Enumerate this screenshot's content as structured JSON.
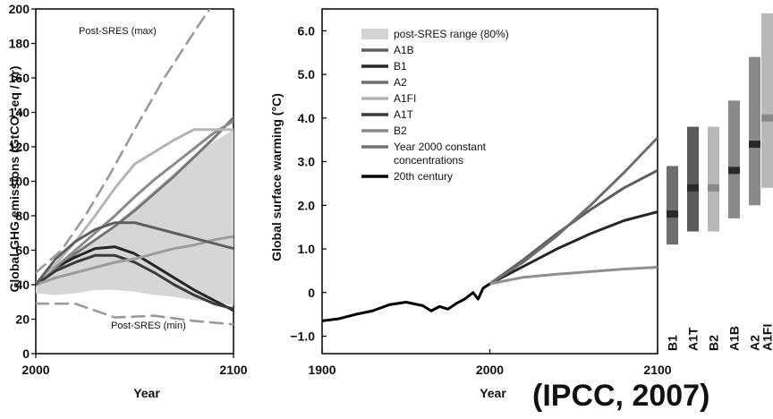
{
  "credit": "(IPCC, 2007)",
  "chart_data": [
    {
      "type": "line",
      "panel": "emissions",
      "xlabel": "Year",
      "ylabel": "Global GHG emissions (GtCO2-eq / yr)",
      "xlim": [
        2000,
        2100
      ],
      "ylim": [
        0,
        200
      ],
      "xticks": [
        2000,
        2100
      ],
      "yticks": [
        0,
        20,
        40,
        60,
        80,
        100,
        120,
        140,
        160,
        180,
        200
      ],
      "band": {
        "x": [
          2000,
          2010,
          2020,
          2030,
          2040,
          2050,
          2060,
          2070,
          2080,
          2090,
          2100
        ],
        "lower": [
          35,
          34,
          35,
          37,
          37,
          36,
          34,
          33,
          31,
          30,
          28
        ],
        "upper": [
          42,
          50,
          58,
          66,
          75,
          85,
          95,
          105,
          115,
          123,
          130
        ]
      },
      "annotations": [
        {
          "text": "Post-SRES (max)",
          "x": 2005,
          "y": 192
        },
        {
          "text": "Post-SRES (min)",
          "x": 2027,
          "y": 14
        }
      ],
      "series": [
        {
          "x": [
            2000,
            2013,
            2025,
            2037,
            2050,
            2065,
            2082,
            2100
          ],
          "y": [
            47,
            60,
            80,
            103,
            130,
            160,
            190,
            220
          ],
          "color": "#9a9a9a",
          "dash": true
        },
        {
          "x": [
            2000,
            2020,
            2040,
            2060,
            2080,
            2100
          ],
          "y": [
            29,
            29,
            21,
            22,
            19,
            17
          ],
          "color": "#9a9a9a",
          "dash": true
        },
        {
          "x": [
            2000,
            2010,
            2020,
            2030,
            2040,
            2050,
            2060,
            2070,
            2080,
            2090,
            2100
          ],
          "y": [
            40,
            48,
            58,
            66,
            74,
            83,
            93,
            103,
            114,
            125,
            137
          ],
          "color": "#757575"
        },
        {
          "x": [
            2000,
            2010,
            2020,
            2030,
            2040,
            2050,
            2060,
            2070,
            2080,
            2090,
            2100
          ],
          "y": [
            40,
            50,
            56,
            61,
            62,
            58,
            51,
            44,
            37,
            31,
            25
          ],
          "color": "#262626"
        },
        {
          "x": [
            2000,
            2010,
            2020,
            2030,
            2040,
            2050,
            2060,
            2070,
            2080,
            2090,
            2100
          ],
          "y": [
            40,
            50,
            60,
            70,
            80,
            91,
            101,
            110,
            119,
            128,
            135
          ],
          "color": "#8a8a8a"
        },
        {
          "x": [
            2000,
            2010,
            2020,
            2030,
            2040,
            2050,
            2060,
            2070,
            2080,
            2090,
            2100
          ],
          "y": [
            40,
            52,
            65,
            80,
            96,
            110,
            117,
            124,
            130,
            130,
            130
          ],
          "color": "#b5b5b5"
        },
        {
          "x": [
            2000,
            2010,
            2020,
            2030,
            2040,
            2050,
            2060,
            2070,
            2080,
            2090,
            2100
          ],
          "y": [
            40,
            48,
            53,
            57,
            57,
            53,
            47,
            40,
            34,
            29,
            26
          ],
          "color": "#3a3a3a"
        },
        {
          "x": [
            2000,
            2010,
            2020,
            2030,
            2040,
            2050,
            2060,
            2070,
            2080,
            2090,
            2100
          ],
          "y": [
            40,
            44,
            47,
            50,
            53,
            55,
            58,
            61,
            63,
            66,
            68
          ],
          "color": "#9c9c9c"
        },
        {
          "x": [
            2000,
            2010,
            2020,
            2030,
            2040,
            2050,
            2060,
            2070,
            2080,
            2090,
            2100
          ],
          "y": [
            40,
            55,
            65,
            72,
            76,
            76,
            73,
            70,
            67,
            64,
            61
          ],
          "color": "#5e5e5e"
        }
      ]
    },
    {
      "type": "line",
      "panel": "warming",
      "xlabel": "Year",
      "ylabel": "Global surface warming (°C)",
      "xlim": [
        1900,
        2100
      ],
      "ylim": [
        -1.4,
        6.5
      ],
      "xticks": [
        1900,
        2000,
        2100
      ],
      "yticks": [
        -1.0,
        0,
        1.0,
        2.0,
        3.0,
        4.0,
        5.0,
        6.0
      ],
      "ytick_labels": [
        "−1.0",
        "0",
        "1.0",
        "2.0",
        "3.0",
        "4.0",
        "5.0",
        "6.0"
      ],
      "legend": [
        {
          "label": "post-SRES range (80%)",
          "color": "#d4d4d4",
          "patch": true
        },
        {
          "label": "A1B",
          "color": "#5e5e5e"
        },
        {
          "label": "B1",
          "color": "#262626"
        },
        {
          "label": "A2",
          "color": "#6e6e6e"
        },
        {
          "label": "A1FI",
          "color": "#b0b0b0"
        },
        {
          "label": "A1T",
          "color": "#3a3a3a"
        },
        {
          "label": "B2",
          "color": "#8a8a8a"
        },
        {
          "label": "Year 2000 constant\nconcentrations",
          "color": "#707070"
        },
        {
          "label": "20th century",
          "color": "#000000"
        }
      ],
      "series": [
        {
          "name": "A1B",
          "x": [
            2000,
            2020,
            2040,
            2060,
            2080,
            2100
          ],
          "y": [
            0.2,
            0.75,
            1.35,
            1.9,
            2.4,
            2.8
          ],
          "color": "#5e5e5e"
        },
        {
          "name": "B1",
          "x": [
            2000,
            2020,
            2040,
            2060,
            2080,
            2100
          ],
          "y": [
            0.2,
            0.6,
            1.0,
            1.35,
            1.65,
            1.85
          ],
          "color": "#262626"
        },
        {
          "name": "A2",
          "x": [
            2000,
            2020,
            2040,
            2060,
            2080,
            2100
          ],
          "y": [
            0.2,
            0.7,
            1.3,
            2.0,
            2.75,
            3.55
          ],
          "color": "#6e6e6e"
        },
        {
          "name": "Year 2000 constant\nconcentrations",
          "x": [
            2000,
            2020,
            2040,
            2060,
            2080,
            2100
          ],
          "y": [
            0.2,
            0.35,
            0.42,
            0.48,
            0.54,
            0.58
          ],
          "color": "#8f8f8f"
        },
        {
          "name": "20th century",
          "x": [
            1900,
            1910,
            1920,
            1930,
            1940,
            1950,
            1960,
            1965,
            1970,
            1975,
            1980,
            1985,
            1990,
            1993,
            1996,
            2000
          ],
          "y": [
            -0.65,
            -0.6,
            -0.5,
            -0.42,
            -0.28,
            -0.22,
            -0.3,
            -0.42,
            -0.32,
            -0.38,
            -0.25,
            -0.15,
            0.0,
            -0.15,
            0.1,
            0.2
          ],
          "color": "#000000"
        }
      ]
    },
    {
      "type": "bar",
      "panel": "likely-range-2100",
      "categories": [
        "B1",
        "A1T",
        "B2",
        "A1B",
        "A2",
        "A1FI"
      ],
      "ylim": [
        -1.4,
        6.5
      ],
      "ranges": [
        {
          "low": 1.1,
          "high": 2.9,
          "best": 1.8,
          "color": "#6e6e6e"
        },
        {
          "low": 1.4,
          "high": 3.8,
          "best": 2.4,
          "color": "#5a5a5a"
        },
        {
          "low": 1.4,
          "high": 3.8,
          "best": 2.4,
          "color": "#b8b8b8"
        },
        {
          "low": 1.7,
          "high": 4.4,
          "best": 2.8,
          "color": "#8a8a8a"
        },
        {
          "low": 2.0,
          "high": 5.4,
          "best": 3.4,
          "color": "#8a8a8a"
        },
        {
          "low": 2.4,
          "high": 6.4,
          "best": 4.0,
          "color": "#b8b8b8"
        }
      ]
    }
  ]
}
